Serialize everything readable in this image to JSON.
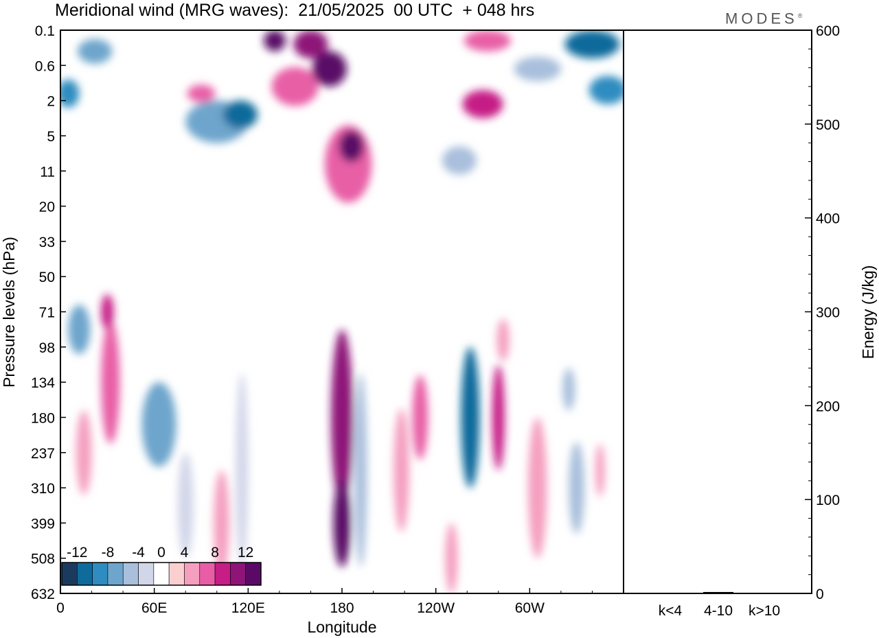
{
  "title": "Meridional wind (MRG waves):  21/05/2025  00 UTC  + 048 hrs",
  "brand": "MODES",
  "brand_mark": "®",
  "colors": {
    "neg": [
      "#1b3b5e",
      "#0f6b9b",
      "#2f8cc0",
      "#6ea5cc",
      "#a9bfdc",
      "#d2d6e9"
    ],
    "zero": "#ffffff",
    "pos": [
      "#fbcfcf",
      "#f59fbf",
      "#e85ea6",
      "#c61d86",
      "#8e1478",
      "#5a0a66"
    ]
  },
  "chart_data": [
    {
      "type": "heatmap",
      "title": "Meridional wind (MRG waves):  21/05/2025  00 UTC  + 048 hrs",
      "xlabel": "Longitude",
      "ylabel": "Pressure levels (hPa)",
      "x_ticks": [
        "0",
        "60E",
        "120E",
        "180",
        "120W",
        "60W"
      ],
      "x_tick_values": [
        0,
        60,
        120,
        180,
        240,
        300
      ],
      "xlim": [
        0,
        360
      ],
      "y_ticks": [
        "0.1",
        "0.6",
        "2",
        "5",
        "11",
        "20",
        "33",
        "50",
        "71",
        "98",
        "134",
        "180",
        "237",
        "310",
        "399",
        "508",
        "632"
      ],
      "colorbar": {
        "labels": [
          "-12",
          "-8",
          "-4",
          "0",
          "4",
          "8",
          "12"
        ],
        "bounds": [
          -14,
          -12,
          -10,
          -8,
          -6,
          -4,
          -2,
          2,
          4,
          6,
          8,
          10,
          12,
          14
        ]
      },
      "cells": [
        {
          "lon": 172,
          "lev": 1.1,
          "w": 22,
          "h": 1.0,
          "v": 13
        },
        {
          "lon": 160,
          "lev": 0.4,
          "w": 22,
          "h": 0.8,
          "v": 10
        },
        {
          "lon": 137,
          "lev": 0.3,
          "w": 14,
          "h": 0.6,
          "v": 12
        },
        {
          "lon": 150,
          "lev": 1.6,
          "w": 30,
          "h": 1.1,
          "v": 7
        },
        {
          "lon": 186,
          "lev": 3.3,
          "w": 16,
          "h": 0.9,
          "v": 13
        },
        {
          "lon": 184,
          "lev": 3.8,
          "w": 30,
          "h": 2.2,
          "v": 7
        },
        {
          "lon": 115,
          "lev": 2.4,
          "w": 22,
          "h": 0.8,
          "v": -12
        },
        {
          "lon": 100,
          "lev": 2.6,
          "w": 40,
          "h": 1.2,
          "v": -7
        },
        {
          "lon": 22,
          "lev": 0.6,
          "w": 22,
          "h": 0.7,
          "v": -7
        },
        {
          "lon": 5,
          "lev": 1.8,
          "w": 14,
          "h": 0.8,
          "v": -9
        },
        {
          "lon": 340,
          "lev": 0.4,
          "w": 35,
          "h": 0.8,
          "v": -12
        },
        {
          "lon": 350,
          "lev": 1.7,
          "w": 24,
          "h": 0.8,
          "v": -10
        },
        {
          "lon": 305,
          "lev": 1.1,
          "w": 30,
          "h": 0.7,
          "v": -5
        },
        {
          "lon": 273,
          "lev": 0.3,
          "w": 30,
          "h": 0.6,
          "v": 7
        },
        {
          "lon": 270,
          "lev": 2.1,
          "w": 26,
          "h": 0.8,
          "v": 8
        },
        {
          "lon": 255,
          "lev": 3.7,
          "w": 22,
          "h": 0.8,
          "v": -6
        },
        {
          "lon": 90,
          "lev": 1.8,
          "w": 18,
          "h": 0.5,
          "v": 6
        },
        {
          "lon": 180,
          "lev": 11.0,
          "w": 14,
          "h": 5.0,
          "v": 11
        },
        {
          "lon": 180,
          "lev": 14.0,
          "w": 11,
          "h": 2.5,
          "v": 13
        },
        {
          "lon": 192,
          "lev": 12.5,
          "w": 8,
          "h": 5.5,
          "v": -6
        },
        {
          "lon": 230,
          "lev": 11.0,
          "w": 10,
          "h": 2.4,
          "v": 7
        },
        {
          "lon": 218,
          "lev": 12.5,
          "w": 10,
          "h": 3.5,
          "v": 5
        },
        {
          "lon": 262,
          "lev": 11.0,
          "w": 12,
          "h": 4.0,
          "v": -12
        },
        {
          "lon": 280,
          "lev": 11.0,
          "w": 8,
          "h": 3.0,
          "v": 9
        },
        {
          "lon": 283,
          "lev": 8.8,
          "w": 8,
          "h": 1.2,
          "v": 5
        },
        {
          "lon": 330,
          "lev": 13.0,
          "w": 10,
          "h": 2.6,
          "v": -6
        },
        {
          "lon": 325,
          "lev": 10.2,
          "w": 8,
          "h": 1.2,
          "v": -6
        },
        {
          "lon": 63,
          "lev": 11.2,
          "w": 22,
          "h": 2.4,
          "v": -8
        },
        {
          "lon": 32,
          "lev": 10.0,
          "w": 12,
          "h": 3.5,
          "v": 7
        },
        {
          "lon": 30,
          "lev": 8.0,
          "w": 8,
          "h": 1.0,
          "v": 8
        },
        {
          "lon": 12,
          "lev": 8.5,
          "w": 14,
          "h": 1.4,
          "v": -7
        },
        {
          "lon": 15,
          "lev": 12.0,
          "w": 10,
          "h": 2.4,
          "v": 4
        },
        {
          "lon": 116,
          "lev": 12.5,
          "w": 8,
          "h": 5.5,
          "v": -4
        },
        {
          "lon": 103,
          "lev": 14.0,
          "w": 10,
          "h": 3.0,
          "v": 4
        },
        {
          "lon": 305,
          "lev": 13.0,
          "w": 12,
          "h": 4.0,
          "v": 4
        },
        {
          "lon": 250,
          "lev": 15.0,
          "w": 8,
          "h": 2.0,
          "v": 5
        },
        {
          "lon": 345,
          "lev": 12.5,
          "w": 6,
          "h": 1.5,
          "v": 4
        },
        {
          "lon": 80,
          "lev": 13.5,
          "w": 10,
          "h": 3.0,
          "v": -4
        }
      ]
    },
    {
      "type": "bar",
      "ylabel": "Energy (J/kg)",
      "categories": [
        "k<4",
        "4-10",
        "k>10"
      ],
      "values": [
        0.5,
        1.5,
        0.5
      ],
      "ylim": [
        0,
        600
      ],
      "y_ticks": [
        "0",
        "100",
        "200",
        "300",
        "400",
        "500",
        "600"
      ],
      "y_tick_values": [
        0,
        100,
        200,
        300,
        400,
        500,
        600
      ]
    }
  ]
}
